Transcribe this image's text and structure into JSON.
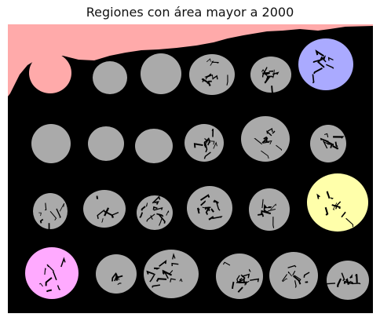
{
  "figure": {
    "title": "Regiones con área mayor a 2000"
  },
  "colors": {
    "background": "#000000",
    "default_region": "#aaaaaa",
    "highlight_pink": "#ffaaaa",
    "highlight_blue": "#aaaaff",
    "highlight_yellow": "#ffffaa",
    "highlight_magenta": "#ffaaff"
  },
  "regions": [
    {
      "name": "coin-r1-c1",
      "fill": "#ffaaaa",
      "defect": false
    },
    {
      "name": "coin-r1-c2",
      "fill": "#aaaaaa",
      "defect": false
    },
    {
      "name": "coin-r1-c3",
      "fill": "#aaaaaa",
      "defect": false
    },
    {
      "name": "coin-r1-c4",
      "fill": "#aaaaaa",
      "defect": true
    },
    {
      "name": "coin-r1-c5",
      "fill": "#aaaaaa",
      "defect": true
    },
    {
      "name": "coin-r1-c6",
      "fill": "#aaaaff",
      "defect": true
    },
    {
      "name": "coin-r2-c1",
      "fill": "#aaaaaa",
      "defect": false
    },
    {
      "name": "coin-r2-c2",
      "fill": "#aaaaaa",
      "defect": false
    },
    {
      "name": "coin-r2-c3",
      "fill": "#aaaaaa",
      "defect": false
    },
    {
      "name": "coin-r2-c4",
      "fill": "#aaaaaa",
      "defect": true
    },
    {
      "name": "coin-r2-c5",
      "fill": "#aaaaaa",
      "defect": true
    },
    {
      "name": "coin-r2-c6",
      "fill": "#aaaaaa",
      "defect": true
    },
    {
      "name": "coin-r3-c1",
      "fill": "#aaaaaa",
      "defect": true
    },
    {
      "name": "coin-r3-c2",
      "fill": "#aaaaaa",
      "defect": true
    },
    {
      "name": "coin-r3-c3",
      "fill": "#aaaaaa",
      "defect": true
    },
    {
      "name": "coin-r3-c4",
      "fill": "#aaaaaa",
      "defect": true
    },
    {
      "name": "coin-r3-c5",
      "fill": "#aaaaaa",
      "defect": true
    },
    {
      "name": "coin-r3-c6",
      "fill": "#ffffaa",
      "defect": true
    },
    {
      "name": "coin-r4-c1",
      "fill": "#ffaaff",
      "defect": true
    },
    {
      "name": "coin-r4-c2",
      "fill": "#aaaaaa",
      "defect": true
    },
    {
      "name": "coin-r4-c3",
      "fill": "#aaaaaa",
      "defect": true
    },
    {
      "name": "coin-r4-c4",
      "fill": "#aaaaaa",
      "defect": true
    },
    {
      "name": "coin-r4-c5",
      "fill": "#aaaaaa",
      "defect": true
    },
    {
      "name": "coin-r4-c6",
      "fill": "#aaaaaa",
      "defect": true
    }
  ]
}
